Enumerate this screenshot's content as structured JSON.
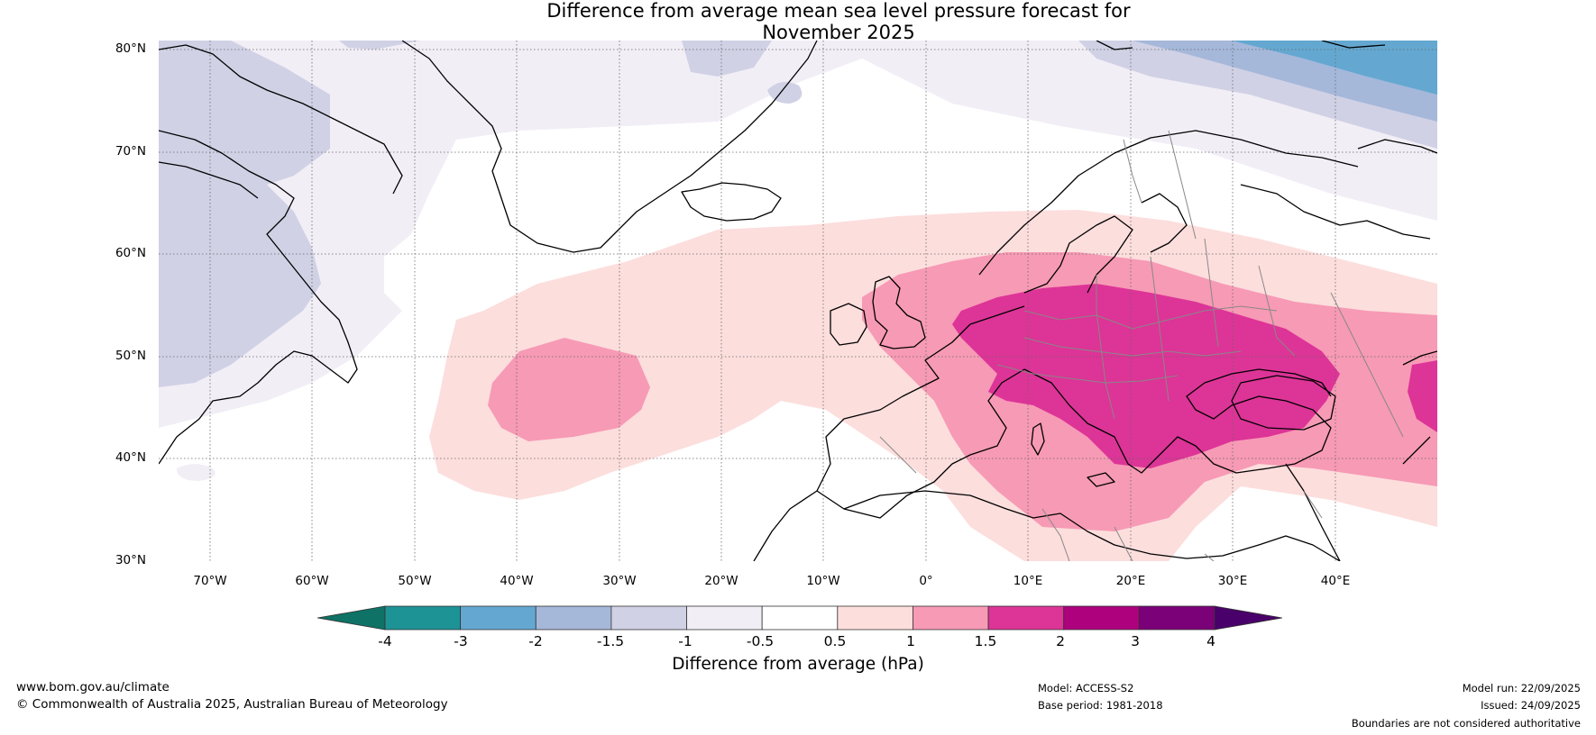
{
  "title": {
    "line1": "Difference from average mean sea level pressure forecast for",
    "line2": "November 2025"
  },
  "map": {
    "lat_labels": [
      "80°N",
      "70°N",
      "60°N",
      "50°N",
      "40°N",
      "30°N"
    ],
    "lon_labels": [
      "70°W",
      "60°W",
      "50°W",
      "40°W",
      "30°W",
      "20°W",
      "10°W",
      "0°",
      "10°E",
      "20°E",
      "30°E",
      "40°E"
    ],
    "lon_range": [
      -75,
      50
    ],
    "lat_range": [
      30,
      81
    ]
  },
  "colorbar": {
    "label": "Difference from average (hPa)",
    "ticks": [
      "-4",
      "-3",
      "-2",
      "-1.5",
      "-1",
      "-0.5",
      "0.5",
      "1",
      "1.5",
      "2",
      "3",
      "4"
    ],
    "colors": {
      "below_min": "#0e7266",
      "bins": [
        "#1d9396",
        "#64a8d1",
        "#a5b8da",
        "#d0d1e5",
        "#f2eef6",
        "#ffffff",
        "#fcdedd",
        "#f79ab5",
        "#dd3497",
        "#ae017e",
        "#7a0177"
      ],
      "above_max": "#49006a"
    }
  },
  "footer": {
    "url": "www.bom.gov.au/climate",
    "copyright": "© Commonwealth of Australia 2025, Australian Bureau of Meteorology",
    "model": "Model: ACCESS-S2",
    "base_period": "Base period: 1981-2018",
    "model_run": "Model run: 22/09/2025",
    "issued": "Issued: 24/09/2025",
    "disclaimer": "Boundaries are not considered authoritative"
  }
}
